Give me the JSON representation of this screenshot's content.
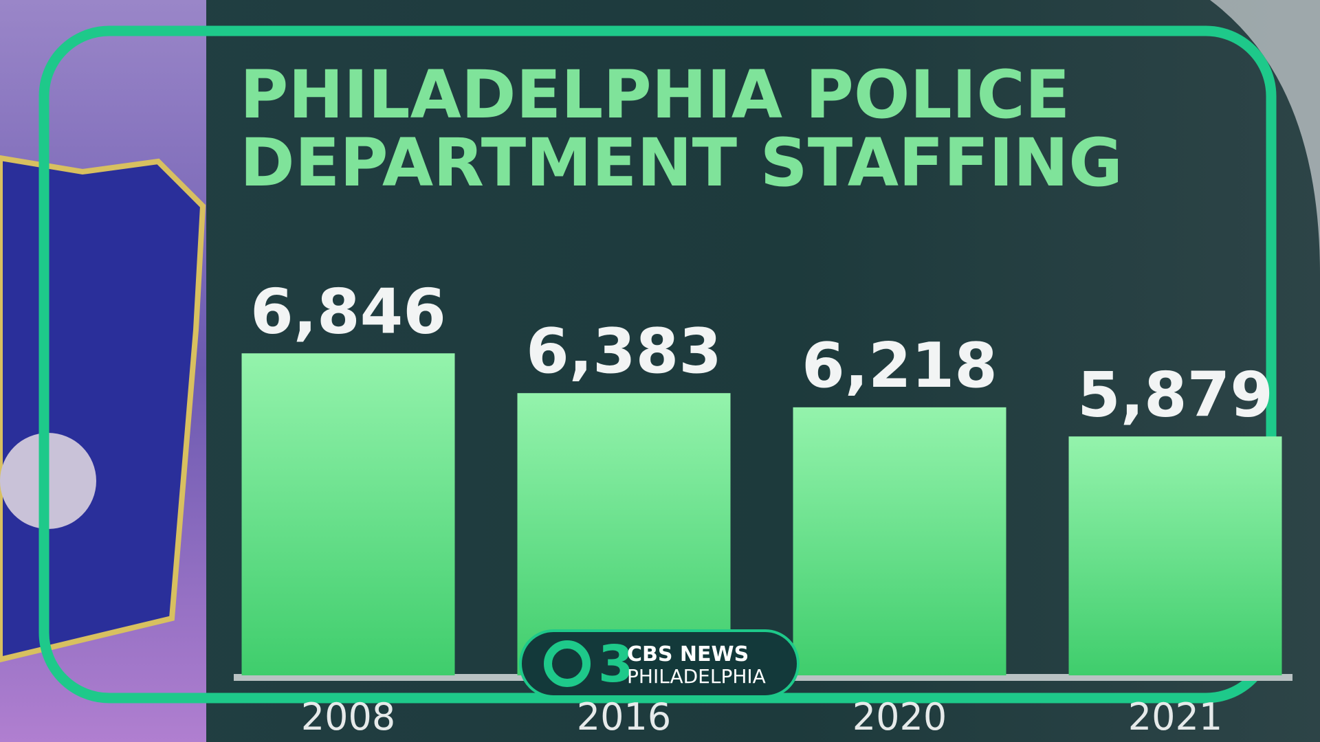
{
  "chart_data": {
    "type": "bar",
    "title": [
      "PHILADELPHIA POLICE",
      "DEPARTMENT STAFFING"
    ],
    "categories": [
      "2008",
      "2016",
      "2020",
      "2021"
    ],
    "values": [
      6846,
      6383,
      6218,
      5879
    ],
    "value_labels": [
      "6,846",
      "6,383",
      "6,218",
      "5,879"
    ],
    "color": "#4fd87c",
    "ylim": [
      3100,
      7000
    ]
  },
  "logo": {
    "channel": "3",
    "network": "CBS NEWS",
    "market": "PHILADELPHIA"
  }
}
